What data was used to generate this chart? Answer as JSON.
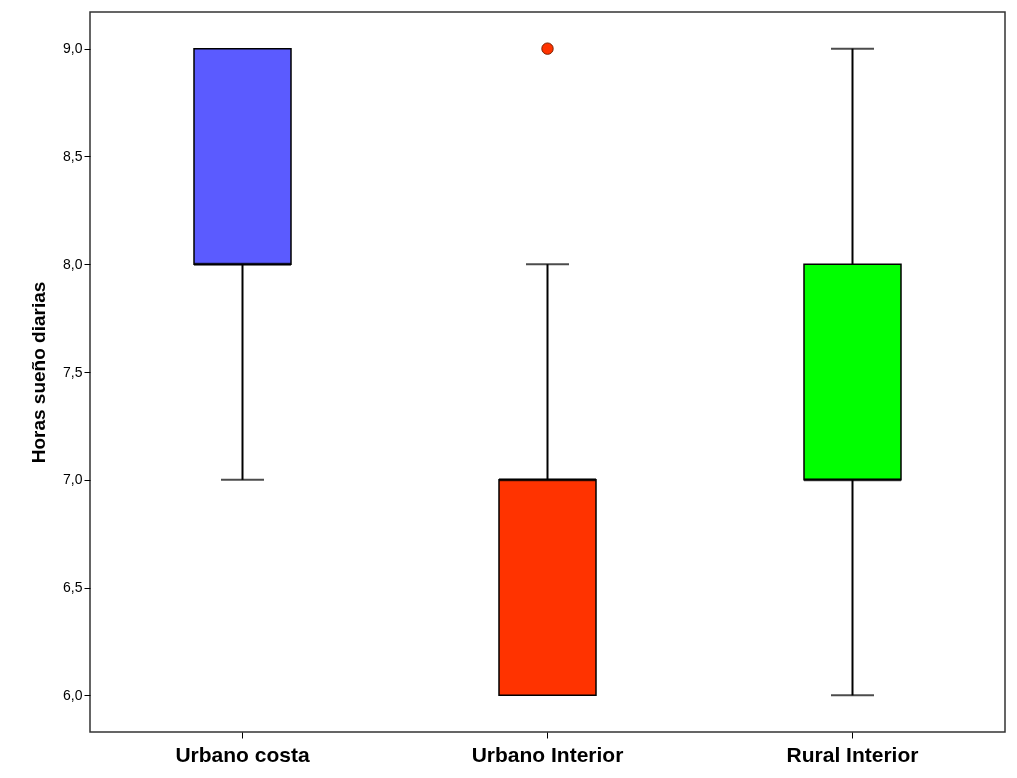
{
  "chart_data": {
    "type": "box",
    "ylabel": "Horas sueño diarias",
    "categories": [
      "Urbano costa",
      "Urbano Interior",
      "Rural Interior"
    ],
    "colors": [
      "#5b5bff",
      "#ff3300",
      "#00ff00"
    ],
    "boxes": [
      {
        "low": 7,
        "q1": 8,
        "median": 8,
        "q3": 9,
        "high": 9
      },
      {
        "low": 6,
        "q1": 6,
        "median": 7,
        "q3": 7,
        "high": 8,
        "outliers": [
          9
        ]
      },
      {
        "low": 6,
        "q1": 7,
        "median": 7,
        "q3": 8,
        "high": 9
      }
    ],
    "ylim": [
      5.83,
      9.17
    ],
    "yticks": [
      {
        "value": 6,
        "label": "6,0"
      },
      {
        "value": 6.5,
        "label": "6,5"
      },
      {
        "value": 7,
        "label": "7,0"
      },
      {
        "value": 7.5,
        "label": "7,5"
      },
      {
        "value": 8,
        "label": "8,0"
      },
      {
        "value": 8.5,
        "label": "8,5"
      },
      {
        "value": 9,
        "label": "9,0"
      }
    ],
    "grid": false
  }
}
